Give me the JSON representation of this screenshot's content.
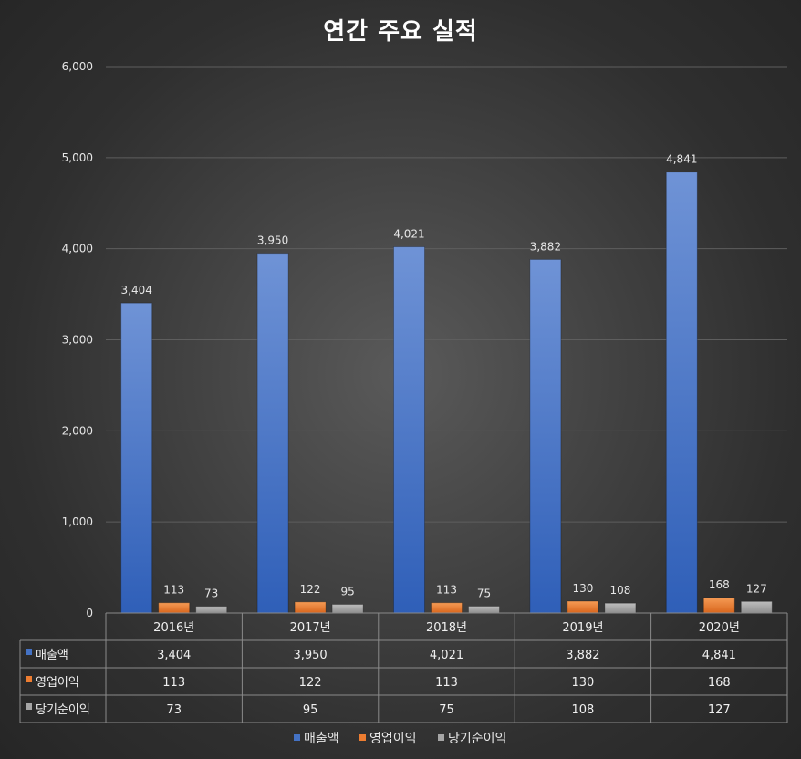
{
  "colors": {
    "series1": "#4472c4",
    "series2": "#ed7d31",
    "series3": "#a5a5a5",
    "grid": "#5e5e5e",
    "table_line": "#8a8a8a"
  },
  "chart_data": {
    "type": "bar",
    "title": "연간 주요 실적",
    "categories": [
      "2016년",
      "2017년",
      "2018년",
      "2019년",
      "2020년"
    ],
    "series": [
      {
        "name": "매출액",
        "values": [
          3404,
          3950,
          4021,
          3882,
          4841
        ]
      },
      {
        "name": "영업이익",
        "values": [
          113,
          122,
          113,
          130,
          168
        ]
      },
      {
        "name": "당기순이익",
        "values": [
          73,
          95,
          75,
          108,
          127
        ]
      }
    ],
    "ylim": [
      0,
      6000
    ],
    "yticks": [
      0,
      1000,
      2000,
      3000,
      4000,
      5000,
      6000
    ],
    "ytick_labels": [
      "0",
      "1,000",
      "2,000",
      "3,000",
      "4,000",
      "5,000",
      "6,000"
    ],
    "data_labels": [
      [
        "3,404",
        "3,950",
        "4,021",
        "3,882",
        "4,841"
      ],
      [
        "113",
        "122",
        "113",
        "130",
        "168"
      ],
      [
        "73",
        "95",
        "75",
        "108",
        "127"
      ]
    ],
    "grid": true,
    "legend": "bottom",
    "data_table": true
  }
}
